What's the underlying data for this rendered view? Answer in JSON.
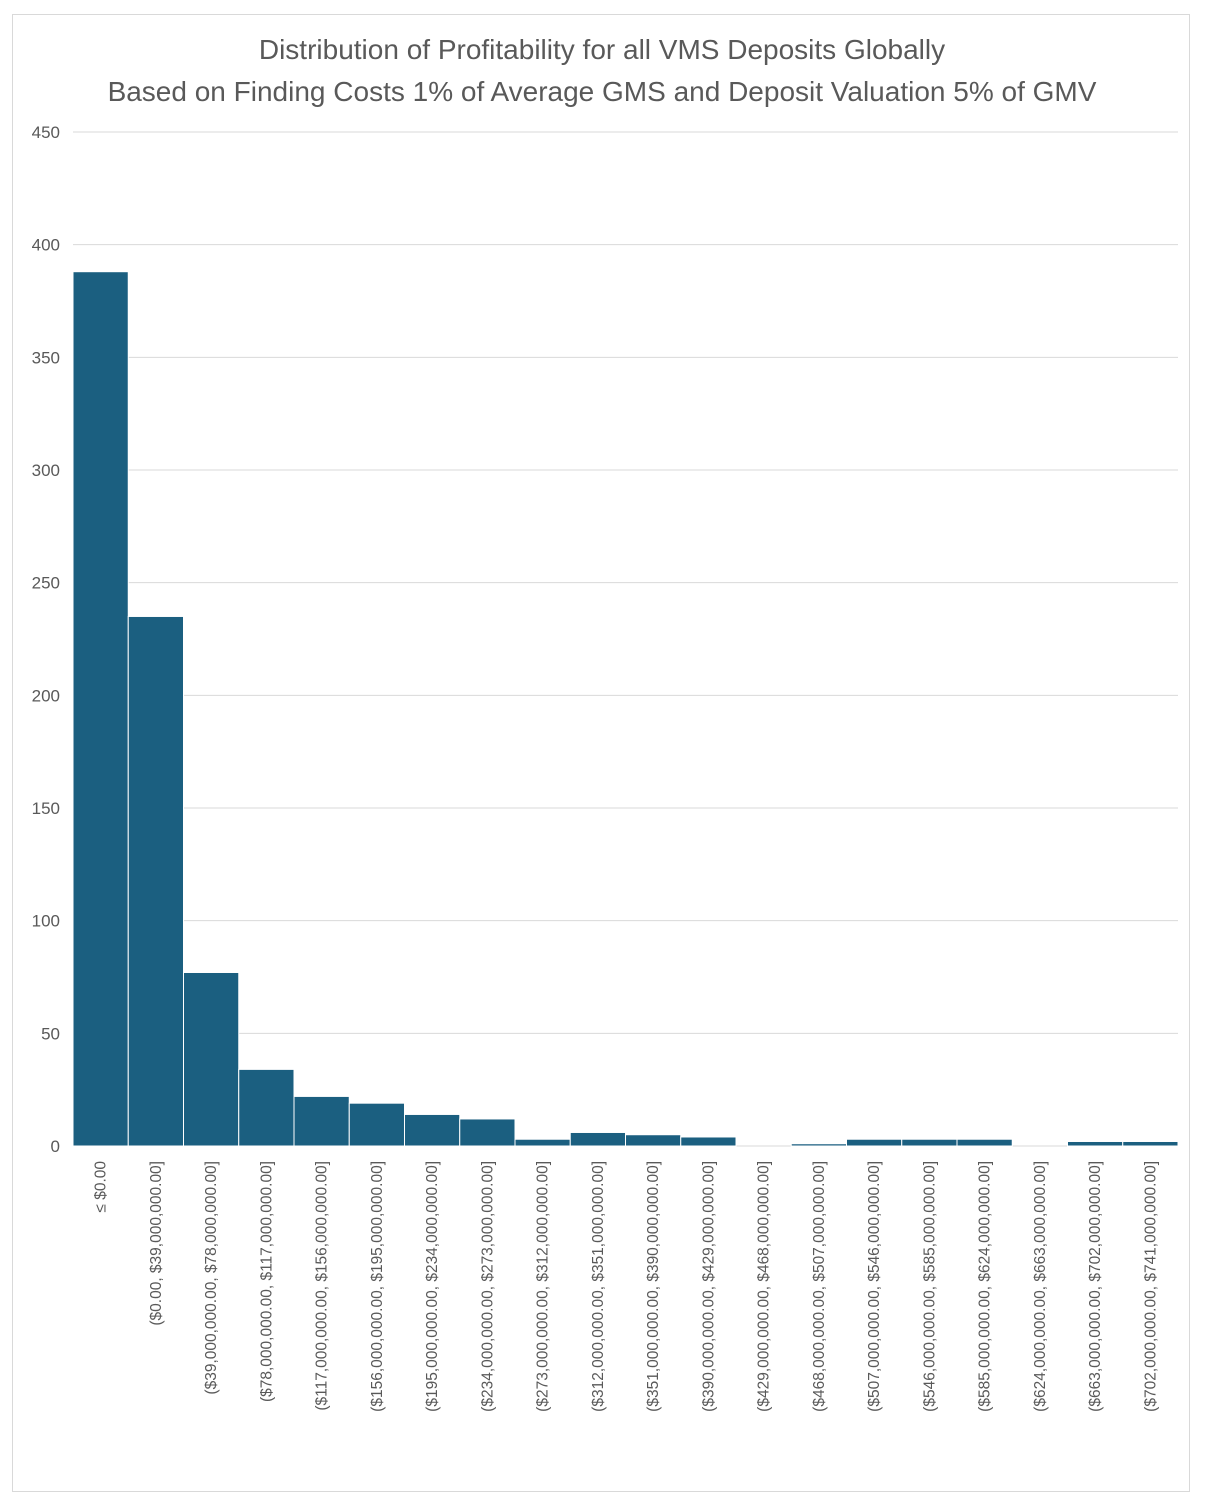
{
  "chart_data": {
    "type": "bar",
    "title_lines": [
      "Distribution of Profitability for all VMS Deposits Globally",
      "Based on Finding Costs 1% of Average GMS and Deposit Valuation 5% of GMV"
    ],
    "xlabel": "",
    "ylabel": "",
    "ylim": [
      0,
      450
    ],
    "yticks": [
      0,
      50,
      100,
      150,
      200,
      250,
      300,
      350,
      400,
      450
    ],
    "grid": true,
    "bar_color": "#1b5f80",
    "categories": [
      "≤ $0.00",
      "($0.00, $39,000,000.00]",
      "($39,000,000.00, $78,000,000.00]",
      "($78,000,000.00, $117,000,000.00]",
      "($117,000,000.00, $156,000,000.00]",
      "($156,000,000.00, $195,000,000.00]",
      "($195,000,000.00, $234,000,000.00]",
      "($234,000,000.00, $273,000,000.00]",
      "($273,000,000.00, $312,000,000.00]",
      "($312,000,000.00, $351,000,000.00]",
      "($351,000,000.00, $390,000,000.00]",
      "($390,000,000.00, $429,000,000.00]",
      "($429,000,000.00, $468,000,000.00]",
      "($468,000,000.00, $507,000,000.00]",
      "($507,000,000.00, $546,000,000.00]",
      "($546,000,000.00, $585,000,000.00]",
      "($585,000,000.00, $624,000,000.00]",
      "($624,000,000.00, $663,000,000.00]",
      "($663,000,000.00, $702,000,000.00]",
      "($702,000,000.00, $741,000,000.00]"
    ],
    "values": [
      388,
      235,
      77,
      34,
      22,
      19,
      14,
      12,
      3,
      6,
      5,
      4,
      0,
      1,
      3,
      3,
      3,
      0,
      2,
      2
    ]
  }
}
